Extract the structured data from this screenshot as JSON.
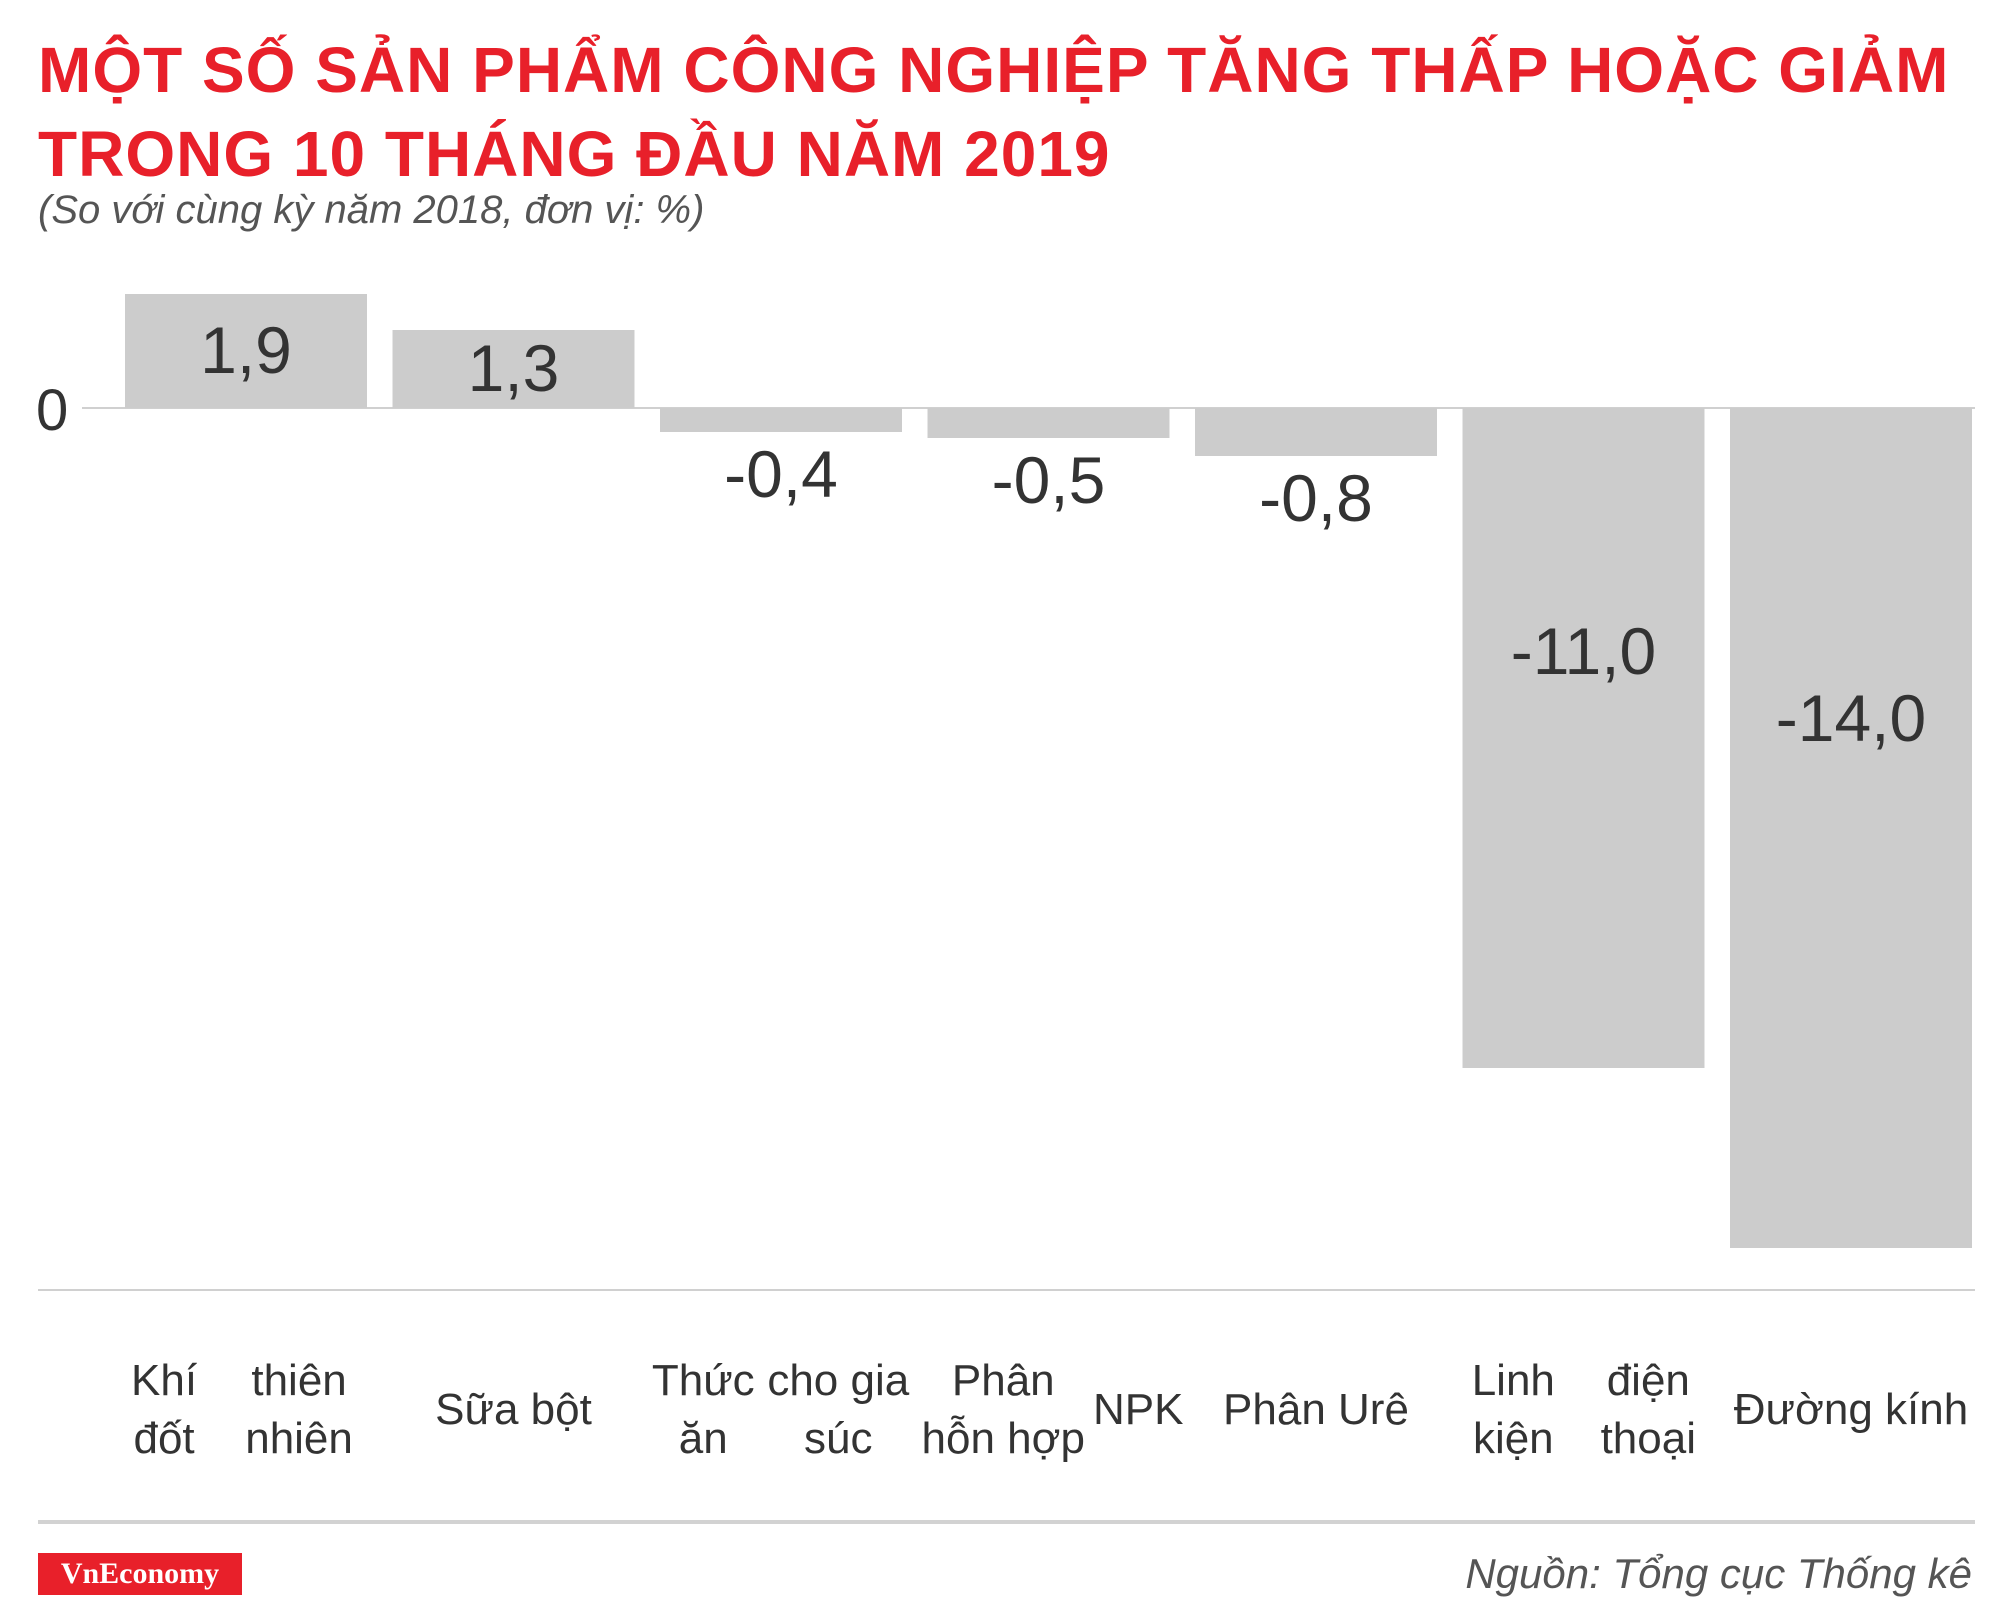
{
  "header": {
    "title_line1": "MỘT SỐ SẢN PHẨM CÔNG NGHIỆP TĂNG THẤP HOẶC GIẢM",
    "title_line2": "TRONG 10 THÁNG ĐẦU NĂM 2019",
    "subtitle": "(So với cùng kỳ năm 2018, đơn vị: %)"
  },
  "chart_data": {
    "type": "bar",
    "categories": [
      [
        "Khí đốt",
        "thiên nhiên"
      ],
      [
        "Sữa bột"
      ],
      [
        "Thức ăn",
        "cho gia súc"
      ],
      [
        "Phân hỗn hợp",
        "NPK"
      ],
      [
        "Phân Urê"
      ],
      [
        "Linh kiện",
        "điện thoại"
      ],
      [
        "Đường kính"
      ]
    ],
    "values": [
      1.9,
      1.3,
      -0.4,
      -0.5,
      -0.8,
      -11.0,
      -14.0
    ],
    "value_labels": [
      "1,9",
      "1,3",
      "-0,4",
      "-0,5",
      "-0,8",
      "-11,0",
      "-14,0"
    ],
    "baseline_label": "0",
    "ylim": [
      -14.0,
      1.9
    ],
    "grid": false,
    "bar_color": "#cccccc",
    "title": "MỘT SỐ SẢN PHẨM CÔNG NGHIỆP TĂNG THẤP HOẶC GIẢM TRONG 10 THÁNG ĐẦU NĂM 2019",
    "subtitle": "(So với cùng kỳ năm 2018, đơn vị: %)"
  },
  "footer": {
    "logo_text": "VnEconomy",
    "source": "Nguồn: Tổng cục Thống kê"
  },
  "colors": {
    "accent": "#e8202a",
    "bar": "#cccccc",
    "text": "#333333"
  }
}
